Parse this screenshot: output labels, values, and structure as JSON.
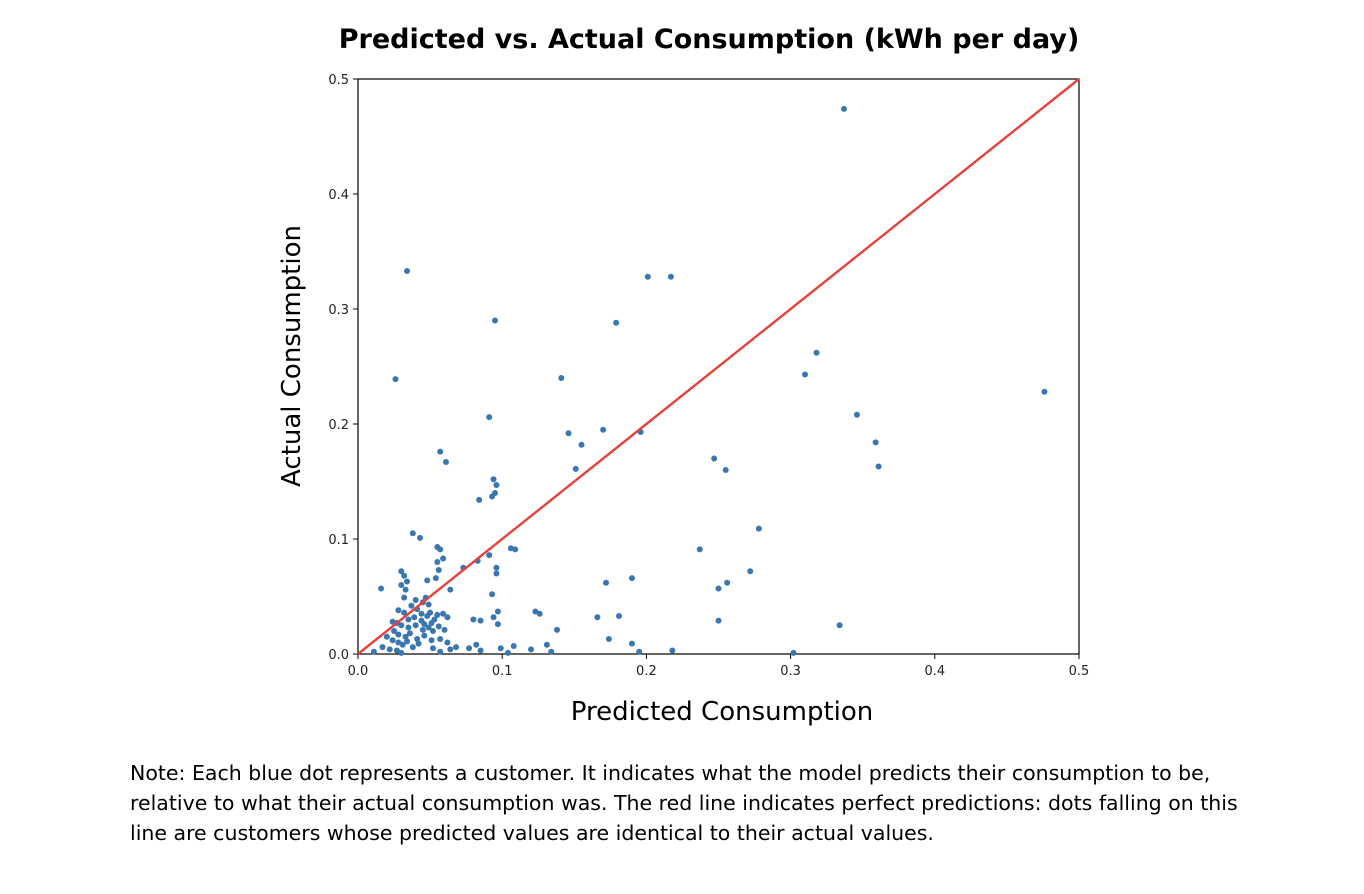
{
  "chart_data": {
    "type": "scatter",
    "title": "Predicted vs. Actual Consumption (kWh per day)",
    "xlabel": "Predicted Consumption",
    "ylabel": "Actual Consumption",
    "xlim": [
      0,
      0.5
    ],
    "ylim": [
      0,
      0.5
    ],
    "xticks": [
      "0.0",
      "0.1",
      "0.2",
      "0.3",
      "0.4",
      "0.5"
    ],
    "yticks": [
      "0.0",
      "0.1",
      "0.2",
      "0.3",
      "0.4",
      "0.5"
    ],
    "grid": false,
    "colors": {
      "points": "#3a76b0",
      "reference_line": "#e8413b"
    },
    "reference_line": {
      "from": [
        0,
        0
      ],
      "to": [
        0.5,
        0.5
      ]
    },
    "series": [
      {
        "points": [
          [
            0.034,
            0.333
          ],
          [
            0.337,
            0.474
          ],
          [
            0.201,
            0.328
          ],
          [
            0.217,
            0.328
          ],
          [
            0.179,
            0.288
          ],
          [
            0.095,
            0.29
          ],
          [
            0.026,
            0.239
          ],
          [
            0.141,
            0.24
          ],
          [
            0.31,
            0.243
          ],
          [
            0.318,
            0.262
          ],
          [
            0.476,
            0.228
          ],
          [
            0.091,
            0.206
          ],
          [
            0.146,
            0.192
          ],
          [
            0.17,
            0.195
          ],
          [
            0.196,
            0.193
          ],
          [
            0.155,
            0.182
          ],
          [
            0.346,
            0.208
          ],
          [
            0.359,
            0.184
          ],
          [
            0.361,
            0.163
          ],
          [
            0.057,
            0.176
          ],
          [
            0.061,
            0.167
          ],
          [
            0.151,
            0.161
          ],
          [
            0.247,
            0.17
          ],
          [
            0.255,
            0.16
          ],
          [
            0.094,
            0.152
          ],
          [
            0.096,
            0.147
          ],
          [
            0.095,
            0.14
          ],
          [
            0.093,
            0.137
          ],
          [
            0.084,
            0.134
          ],
          [
            0.278,
            0.109
          ],
          [
            0.038,
            0.105
          ],
          [
            0.043,
            0.101
          ],
          [
            0.106,
            0.092
          ],
          [
            0.109,
            0.091
          ],
          [
            0.237,
            0.091
          ],
          [
            0.055,
            0.093
          ],
          [
            0.057,
            0.091
          ],
          [
            0.055,
            0.08
          ],
          [
            0.059,
            0.083
          ],
          [
            0.056,
            0.073
          ],
          [
            0.073,
            0.075
          ],
          [
            0.083,
            0.081
          ],
          [
            0.091,
            0.086
          ],
          [
            0.096,
            0.075
          ],
          [
            0.096,
            0.07
          ],
          [
            0.03,
            0.072
          ],
          [
            0.032,
            0.068
          ],
          [
            0.034,
            0.063
          ],
          [
            0.03,
            0.06
          ],
          [
            0.048,
            0.064
          ],
          [
            0.054,
            0.066
          ],
          [
            0.172,
            0.062
          ],
          [
            0.19,
            0.066
          ],
          [
            0.256,
            0.062
          ],
          [
            0.25,
            0.057
          ],
          [
            0.272,
            0.072
          ],
          [
            0.016,
            0.057
          ],
          [
            0.033,
            0.056
          ],
          [
            0.064,
            0.056
          ],
          [
            0.032,
            0.049
          ],
          [
            0.04,
            0.047
          ],
          [
            0.045,
            0.045
          ],
          [
            0.047,
            0.049
          ],
          [
            0.049,
            0.043
          ],
          [
            0.037,
            0.042
          ],
          [
            0.041,
            0.039
          ],
          [
            0.028,
            0.038
          ],
          [
            0.032,
            0.036
          ],
          [
            0.044,
            0.035
          ],
          [
            0.048,
            0.033
          ],
          [
            0.05,
            0.036
          ],
          [
            0.055,
            0.034
          ],
          [
            0.059,
            0.035
          ],
          [
            0.062,
            0.032
          ],
          [
            0.053,
            0.03
          ],
          [
            0.093,
            0.052
          ],
          [
            0.097,
            0.037
          ],
          [
            0.094,
            0.032
          ],
          [
            0.097,
            0.026
          ],
          [
            0.08,
            0.03
          ],
          [
            0.085,
            0.029
          ],
          [
            0.123,
            0.037
          ],
          [
            0.126,
            0.035
          ],
          [
            0.166,
            0.032
          ],
          [
            0.181,
            0.033
          ],
          [
            0.25,
            0.029
          ],
          [
            0.334,
            0.025
          ],
          [
            0.024,
            0.028
          ],
          [
            0.027,
            0.027
          ],
          [
            0.03,
            0.025
          ],
          [
            0.035,
            0.023
          ],
          [
            0.04,
            0.025
          ],
          [
            0.045,
            0.021
          ],
          [
            0.049,
            0.023
          ],
          [
            0.052,
            0.02
          ],
          [
            0.056,
            0.024
          ],
          [
            0.06,
            0.021
          ],
          [
            0.025,
            0.02
          ],
          [
            0.028,
            0.017
          ],
          [
            0.033,
            0.015
          ],
          [
            0.036,
            0.018
          ],
          [
            0.041,
            0.013
          ],
          [
            0.046,
            0.016
          ],
          [
            0.051,
            0.012
          ],
          [
            0.057,
            0.013
          ],
          [
            0.062,
            0.01
          ],
          [
            0.024,
            0.012
          ],
          [
            0.028,
            0.01
          ],
          [
            0.031,
            0.008
          ],
          [
            0.034,
            0.011
          ],
          [
            0.038,
            0.006
          ],
          [
            0.042,
            0.009
          ],
          [
            0.02,
            0.015
          ],
          [
            0.017,
            0.006
          ],
          [
            0.022,
            0.004
          ],
          [
            0.027,
            0.003
          ],
          [
            0.03,
            0.001
          ],
          [
            0.052,
            0.005
          ],
          [
            0.057,
            0.002
          ],
          [
            0.064,
            0.004
          ],
          [
            0.068,
            0.006
          ],
          [
            0.077,
            0.005
          ],
          [
            0.082,
            0.008
          ],
          [
            0.085,
            0.003
          ],
          [
            0.099,
            0.005
          ],
          [
            0.108,
            0.007
          ],
          [
            0.104,
            0.001
          ],
          [
            0.12,
            0.004
          ],
          [
            0.131,
            0.008
          ],
          [
            0.138,
            0.021
          ],
          [
            0.134,
            0.002
          ],
          [
            0.174,
            0.013
          ],
          [
            0.19,
            0.009
          ],
          [
            0.195,
            0.002
          ],
          [
            0.218,
            0.003
          ],
          [
            0.302,
            0.001
          ],
          [
            0.011,
            0.002
          ],
          [
            0.044,
            0.029
          ],
          [
            0.039,
            0.032
          ],
          [
            0.051,
            0.027
          ],
          [
            0.035,
            0.03
          ],
          [
            0.046,
            0.026
          ]
        ]
      }
    ]
  },
  "note": "Note: Each blue dot represents a customer. It indicates what the model predicts their consumption to be, relative to what their actual consumption was. The red line indicates perfect predictions: dots falling on this line are customers whose predicted values are identical to their actual values."
}
